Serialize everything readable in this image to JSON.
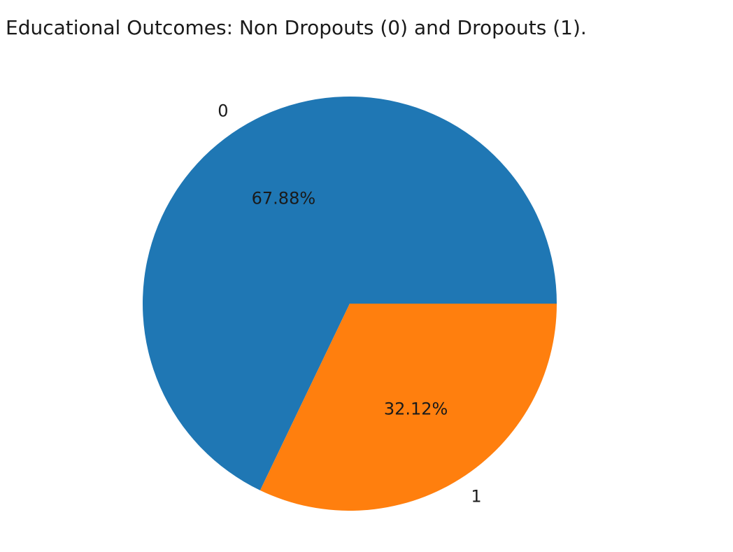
{
  "chart_data": {
    "type": "pie",
    "title": "Educational Outcomes: Non Dropouts (0) and Dropouts (1).",
    "categories": [
      "0",
      "1"
    ],
    "values": [
      67.88,
      32.12
    ],
    "autopct_labels": [
      "67.88%",
      "32.12%"
    ],
    "colors": [
      "#1f77b4",
      "#ff7f0e"
    ],
    "start_angle_deg": 0,
    "direction": "counterclockwise",
    "legend": "none"
  }
}
